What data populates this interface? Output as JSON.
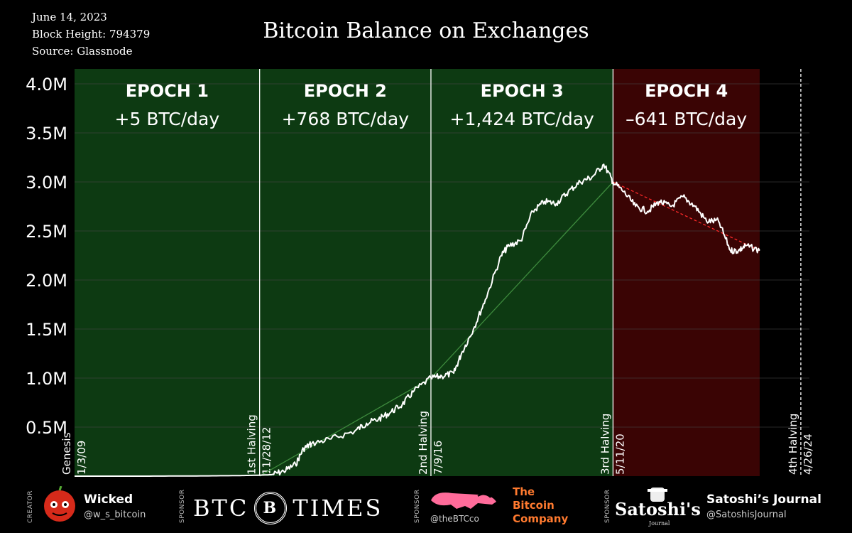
{
  "header": {
    "date": "June 14, 2023",
    "block_height": "Block Height: 794379",
    "source": "Source: Glassnode",
    "title": "Bitcoin Balance on Exchanges"
  },
  "chart_data": {
    "type": "line",
    "title": "Bitcoin Balance on Exchanges",
    "y_ticks": [
      "4.0M",
      "3.5M",
      "3.0M",
      "2.5M",
      "2.0M",
      "1.5M",
      "1.0M",
      "0.5M"
    ],
    "ylim": [
      0,
      4000000
    ],
    "xlim": [
      "2009-01-03",
      "2024-07-01"
    ],
    "grid": "horizontal",
    "epochs": [
      {
        "name": "EPOCH 1",
        "rate": "+5 BTC/day",
        "start": "2009-01-03",
        "end": "2012-11-28",
        "color": "#0d3a12"
      },
      {
        "name": "EPOCH 2",
        "rate": "+768 BTC/day",
        "start": "2012-11-28",
        "end": "2016-07-09",
        "color": "#0d3a12"
      },
      {
        "name": "EPOCH 3",
        "rate": "+1,424 BTC/day",
        "start": "2016-07-09",
        "end": "2020-05-11",
        "color": "#0d3a12"
      },
      {
        "name": "EPOCH 4",
        "rate": "–641 BTC/day",
        "start": "2020-05-11",
        "end": "2023-06-14",
        "color": "#3a0404"
      }
    ],
    "markers": [
      {
        "label": "Genesis",
        "date_label": "1/3/09",
        "date": "2009-01-03"
      },
      {
        "label": "1st Halving",
        "date_label": "11/28/12",
        "date": "2012-11-28"
      },
      {
        "label": "2nd Halving",
        "date_label": "7/9/16",
        "date": "2016-07-09"
      },
      {
        "label": "3rd Halving",
        "date_label": "5/11/20",
        "date": "2020-05-11"
      },
      {
        "label": "4th Halving",
        "date_label": "4/26/24",
        "date": "2024-04-26"
      }
    ],
    "series": [
      {
        "points": [
          [
            "2009-01-03",
            0
          ],
          [
            "2010-06-01",
            0
          ],
          [
            "2011-06-01",
            2000
          ],
          [
            "2012-06-01",
            5000
          ],
          [
            "2012-11-28",
            10000
          ],
          [
            "2013-03-01",
            15000
          ],
          [
            "2013-06-01",
            50000
          ],
          [
            "2013-09-01",
            120000
          ],
          [
            "2013-11-01",
            280000
          ],
          [
            "2014-01-01",
            330000
          ],
          [
            "2014-06-01",
            380000
          ],
          [
            "2014-12-01",
            460000
          ],
          [
            "2015-03-01",
            540000
          ],
          [
            "2015-06-01",
            580000
          ],
          [
            "2015-09-01",
            650000
          ],
          [
            "2015-12-01",
            730000
          ],
          [
            "2016-03-01",
            870000
          ],
          [
            "2016-07-09",
            1000000
          ],
          [
            "2016-10-01",
            1020000
          ],
          [
            "2017-01-01",
            1050000
          ],
          [
            "2017-03-01",
            1250000
          ],
          [
            "2017-06-01",
            1500000
          ],
          [
            "2017-09-01",
            1800000
          ],
          [
            "2018-01-01",
            2250000
          ],
          [
            "2018-03-01",
            2350000
          ],
          [
            "2018-06-01",
            2400000
          ],
          [
            "2018-09-01",
            2700000
          ],
          [
            "2018-12-01",
            2800000
          ],
          [
            "2019-03-01",
            2780000
          ],
          [
            "2019-06-01",
            2900000
          ],
          [
            "2019-09-01",
            3000000
          ],
          [
            "2019-12-01",
            3050000
          ],
          [
            "2020-03-01",
            3180000
          ],
          [
            "2020-05-11",
            3000000
          ],
          [
            "2020-08-01",
            2900000
          ],
          [
            "2020-11-01",
            2750000
          ],
          [
            "2021-02-01",
            2700000
          ],
          [
            "2021-05-01",
            2800000
          ],
          [
            "2021-08-01",
            2750000
          ],
          [
            "2021-11-01",
            2850000
          ],
          [
            "2022-02-01",
            2750000
          ],
          [
            "2022-05-01",
            2600000
          ],
          [
            "2022-08-01",
            2600000
          ],
          [
            "2022-11-01",
            2300000
          ],
          [
            "2023-01-01",
            2300000
          ],
          [
            "2023-03-01",
            2350000
          ],
          [
            "2023-06-14",
            2300000
          ]
        ],
        "color": "#ffffff"
      }
    ],
    "trendlines": [
      {
        "from": [
          "2012-11-28",
          0
        ],
        "to": [
          "2016-07-09",
          1000000
        ],
        "color": "#3d8a3d"
      },
      {
        "from": [
          "2016-07-09",
          1000000
        ],
        "to": [
          "2020-05-11",
          3000000
        ],
        "color": "#3d8a3d"
      },
      {
        "from": [
          "2020-05-11",
          3000000
        ],
        "to": [
          "2023-06-14",
          2300000
        ],
        "color": "#ff2a2a",
        "dashed": true
      }
    ]
  },
  "footer": {
    "creator_tag": "CREATOR",
    "creator_name": "Wicked",
    "creator_handle": "@w_s_bitcoin",
    "sponsor_tag": "SPONSOR",
    "btc_times_left": "BTC",
    "btc_times_seal": "B",
    "btc_times_right": "TIMES",
    "tbc_line1": "The",
    "tbc_line2": "Bitcoin",
    "tbc_line3": "Company",
    "tbc_handle": "@theBTCco",
    "sj_logo": "Satoshi's",
    "sj_logo_sub": "Journal",
    "sj_name": "Satoshi’s Journal",
    "sj_handle": "@SatoshisJournal"
  }
}
